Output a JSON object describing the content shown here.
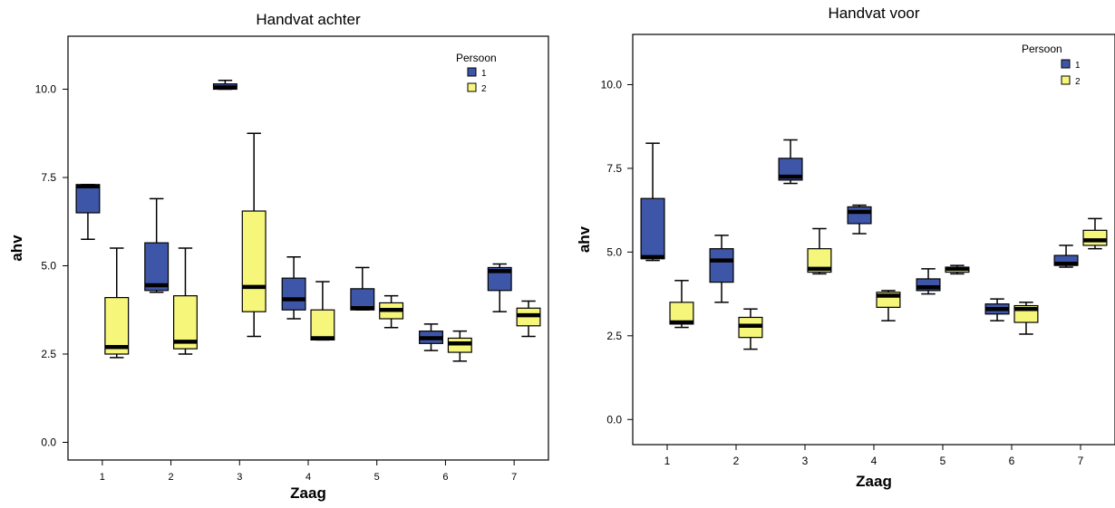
{
  "colors": {
    "persoon_1": "#3e56a8",
    "persoon_2": "#f6f67a",
    "median": "#000000",
    "frame": "#000000"
  },
  "chart_data": [
    {
      "type": "boxplot",
      "title": "Handvat achter",
      "xlabel": "Zaag",
      "ylabel": "ahv",
      "ylim": [
        -0.5,
        11.5
      ],
      "yticks": [
        0.0,
        2.5,
        5.0,
        7.5,
        10.0
      ],
      "ytick_labels": [
        "0.0",
        "2.5",
        "5.0",
        "7.5",
        "10.0"
      ],
      "categories": [
        "1",
        "2",
        "3",
        "4",
        "5",
        "6",
        "7"
      ],
      "legend": {
        "title": "Persoon",
        "items": [
          "1",
          "2"
        ],
        "position": "top-right"
      },
      "grid": false,
      "series": [
        {
          "name": "1",
          "boxes": [
            {
              "min": 5.75,
              "q1": 6.5,
              "median": 7.25,
              "q3": 7.3,
              "max": 7.3
            },
            {
              "min": 4.25,
              "q1": 4.3,
              "median": 4.45,
              "q3": 5.65,
              "max": 6.9
            },
            {
              "min": 10.0,
              "q1": 10.0,
              "median": 10.05,
              "q3": 10.15,
              "max": 10.25
            },
            {
              "min": 3.5,
              "q1": 3.75,
              "median": 4.05,
              "q3": 4.65,
              "max": 5.25
            },
            {
              "min": 3.75,
              "q1": 3.75,
              "median": 3.8,
              "q3": 4.35,
              "max": 4.95
            },
            {
              "min": 2.6,
              "q1": 2.8,
              "median": 2.95,
              "q3": 3.15,
              "max": 3.35
            },
            {
              "min": 3.7,
              "q1": 4.3,
              "median": 4.85,
              "q3": 4.95,
              "max": 5.05
            }
          ]
        },
        {
          "name": "2",
          "boxes": [
            {
              "min": 2.4,
              "q1": 2.5,
              "median": 2.7,
              "q3": 4.1,
              "max": 5.5
            },
            {
              "min": 2.5,
              "q1": 2.65,
              "median": 2.85,
              "q3": 4.15,
              "max": 5.5
            },
            {
              "min": 3.0,
              "q1": 3.7,
              "median": 4.4,
              "q3": 6.55,
              "max": 8.75
            },
            {
              "min": 2.9,
              "q1": 2.9,
              "median": 2.95,
              "q3": 3.75,
              "max": 4.55
            },
            {
              "min": 3.25,
              "q1": 3.5,
              "median": 3.75,
              "q3": 3.95,
              "max": 4.15
            },
            {
              "min": 2.3,
              "q1": 2.55,
              "median": 2.8,
              "q3": 2.95,
              "max": 3.15
            },
            {
              "min": 3.0,
              "q1": 3.3,
              "median": 3.6,
              "q3": 3.8,
              "max": 4.0
            }
          ]
        }
      ]
    },
    {
      "type": "boxplot",
      "title": "Handvat voor",
      "xlabel": "Zaag",
      "ylabel": "ahv",
      "ylim": [
        -0.75,
        11.5
      ],
      "yticks": [
        0.0,
        2.5,
        5.0,
        7.5,
        10.0
      ],
      "ytick_labels": [
        "0.0",
        "2.5",
        "5.0",
        "7.5",
        "10.0"
      ],
      "categories": [
        "1",
        "2",
        "3",
        "4",
        "5",
        "6",
        "7"
      ],
      "legend": {
        "title": "Persoon",
        "items": [
          "1",
          "2"
        ],
        "position": "top-right"
      },
      "grid": false,
      "series": [
        {
          "name": "1",
          "boxes": [
            {
              "min": 4.75,
              "q1": 4.8,
              "median": 4.85,
              "q3": 6.6,
              "max": 8.25
            },
            {
              "min": 3.5,
              "q1": 4.1,
              "median": 4.75,
              "q3": 5.1,
              "max": 5.5
            },
            {
              "min": 7.05,
              "q1": 7.15,
              "median": 7.25,
              "q3": 7.8,
              "max": 8.35
            },
            {
              "min": 5.55,
              "q1": 5.85,
              "median": 6.2,
              "q3": 6.35,
              "max": 6.4
            },
            {
              "min": 3.75,
              "q1": 3.85,
              "median": 3.95,
              "q3": 4.2,
              "max": 4.5
            },
            {
              "min": 2.95,
              "q1": 3.15,
              "median": 3.3,
              "q3": 3.45,
              "max": 3.6
            },
            {
              "min": 4.55,
              "q1": 4.6,
              "median": 4.65,
              "q3": 4.9,
              "max": 5.2
            }
          ]
        },
        {
          "name": "2",
          "boxes": [
            {
              "min": 2.75,
              "q1": 2.85,
              "median": 2.9,
              "q3": 3.5,
              "max": 4.15
            },
            {
              "min": 2.1,
              "q1": 2.45,
              "median": 2.8,
              "q3": 3.05,
              "max": 3.3
            },
            {
              "min": 4.35,
              "q1": 4.4,
              "median": 4.5,
              "q3": 5.1,
              "max": 5.7
            },
            {
              "min": 2.95,
              "q1": 3.35,
              "median": 3.7,
              "q3": 3.8,
              "max": 3.85
            },
            {
              "min": 4.35,
              "q1": 4.4,
              "median": 4.5,
              "q3": 4.55,
              "max": 4.6
            },
            {
              "min": 2.55,
              "q1": 2.9,
              "median": 3.3,
              "q3": 3.4,
              "max": 3.5
            },
            {
              "min": 5.1,
              "q1": 5.2,
              "median": 5.35,
              "q3": 5.65,
              "max": 6.0
            }
          ]
        }
      ]
    }
  ]
}
